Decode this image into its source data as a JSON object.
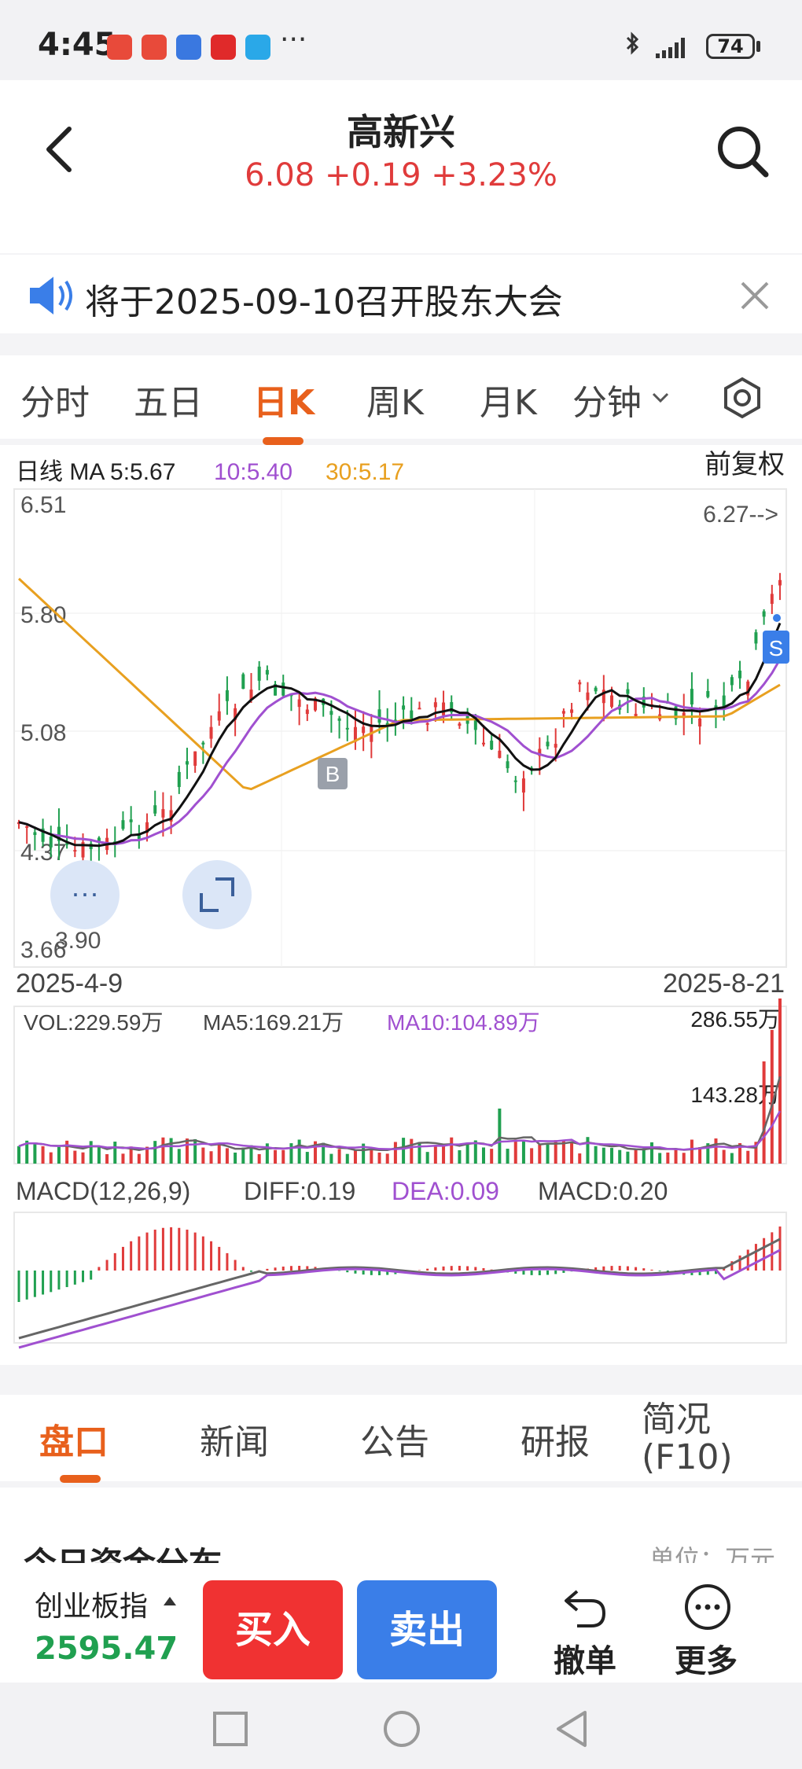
{
  "status_bar": {
    "time": "4:45",
    "more": "···",
    "battery": "74"
  },
  "header": {
    "stock_name": "高新兴",
    "quote": "6.08 +0.19 +3.23%"
  },
  "notice": {
    "text": "将于2025-09-10召开股东大会"
  },
  "period_tabs": [
    {
      "label": "分时",
      "active": false
    },
    {
      "label": "五日",
      "active": false
    },
    {
      "label": "日K",
      "active": true
    },
    {
      "label": "周K",
      "active": false
    },
    {
      "label": "月K",
      "active": false
    },
    {
      "label": "分钟",
      "active": false
    }
  ],
  "kline": {
    "ma_label": "日线 MA 5:5.67",
    "ma10_label": "10:5.40",
    "ma30_label": "30:5.17",
    "adjust_label": "前复权",
    "y_ticks": [
      "6.51",
      "5.80",
      "5.08",
      "4.37",
      "3.66"
    ],
    "low_marker": "3.90",
    "high_marker": "6.27-->",
    "buy_marker": "B",
    "sell_marker": "S",
    "date_start": "2025-4-9",
    "date_end": "2025-8-21"
  },
  "volume": {
    "vol_label": "VOL:229.59万",
    "ma5_label": "MA5:169.21万",
    "ma10_label": "MA10:104.89万",
    "y_top": "286.55万",
    "y_mid": "143.28万"
  },
  "macd": {
    "title": "MACD(12,26,9)",
    "diff": "DIFF:0.19",
    "dea": "DEA:0.09",
    "macd": "MACD:0.20"
  },
  "bottom_tabs": [
    {
      "label": "盘口",
      "active": true
    },
    {
      "label": "新闻",
      "active": false
    },
    {
      "label": "公告",
      "active": false
    },
    {
      "label": "研报",
      "active": false
    },
    {
      "label": "简况(F10)",
      "active": false
    }
  ],
  "section": {
    "title": "今日资金分布",
    "unit": "单位：万元"
  },
  "trade_bar": {
    "index_name": "创业板指",
    "index_value": "2595.47",
    "buy": "买入",
    "sell": "卖出",
    "cancel": "撤单",
    "more": "更多"
  },
  "colors": {
    "up": "#e03b3b",
    "down": "#20a050",
    "accent": "#e8601c",
    "ma10": "#a050d0",
    "ma30": "#e8a020",
    "sell_btn": "#3a7ee8",
    "buy_btn": "#f03232"
  }
}
